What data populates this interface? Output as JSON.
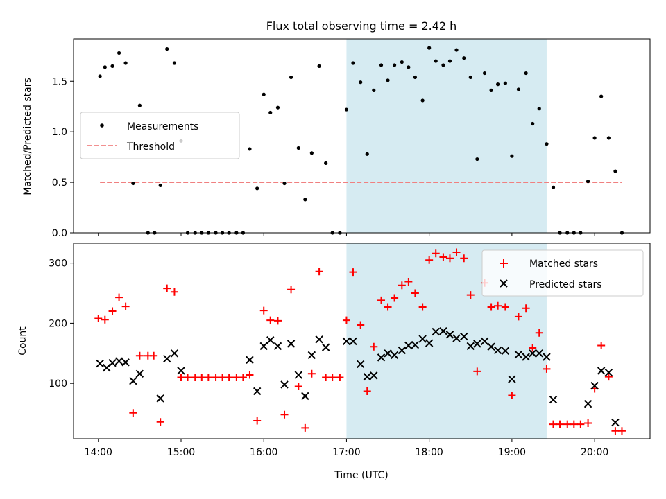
{
  "chart_data": {
    "title": "Flux total observing time = 2.42 h",
    "xlabel": "Time (UTC)",
    "x_ticks": [
      "14:00",
      "15:00",
      "16:00",
      "17:00",
      "18:00",
      "19:00",
      "20:00"
    ],
    "x_tick_hours": [
      14,
      15,
      16,
      17,
      18,
      19,
      20
    ],
    "xlim_hours": [
      13.7,
      20.67
    ],
    "shaded_interval_hours": [
      17.0,
      19.42
    ],
    "shade_color": "#add8e6",
    "panels": [
      {
        "type": "scatter",
        "ylabel": "Matched/Predicted stars",
        "ylim": [
          0,
          1.92
        ],
        "y_ticks": [
          "0.0",
          "0.5",
          "1.0",
          "1.5"
        ],
        "y_tick_values": [
          0,
          0.5,
          1.0,
          1.5
        ],
        "legend_position": "left",
        "series": [
          {
            "name": "Measurements",
            "marker": "dot",
            "color": "#000000",
            "x": [
              14.02,
              14.08,
              14.17,
              14.25,
              14.33,
              14.42,
              14.5,
              14.6,
              14.68,
              14.75,
              14.83,
              14.92,
              15.0,
              15.08,
              15.17,
              15.25,
              15.33,
              15.42,
              15.5,
              15.58,
              15.67,
              15.75,
              15.83,
              15.92,
              16.0,
              16.08,
              16.17,
              16.25,
              16.33,
              16.42,
              16.5,
              16.58,
              16.67,
              16.75,
              16.83,
              16.92,
              17.0,
              17.08,
              17.17,
              17.25,
              17.33,
              17.42,
              17.5,
              17.58,
              17.67,
              17.75,
              17.83,
              17.92,
              18.0,
              18.08,
              18.17,
              18.25,
              18.33,
              18.42,
              18.5,
              18.58,
              18.67,
              18.75,
              18.83,
              18.92,
              19.0,
              19.08,
              19.17,
              19.25,
              19.33,
              19.42,
              19.5,
              19.58,
              19.67,
              19.75,
              19.83,
              19.92,
              20.0,
              20.08,
              20.17,
              20.25,
              20.33
            ],
            "y": [
              1.55,
              1.64,
              1.65,
              1.78,
              1.68,
              0.49,
              1.26,
              0.0,
              0.0,
              0.47,
              1.82,
              1.68,
              0.91,
              0.0,
              0.0,
              0.0,
              0.0,
              0.0,
              0.0,
              0.0,
              0.0,
              0.0,
              0.83,
              0.44,
              1.37,
              1.19,
              1.24,
              0.49,
              1.54,
              0.84,
              0.33,
              0.79,
              1.65,
              0.69,
              0.0,
              0.0,
              1.22,
              1.68,
              1.49,
              0.78,
              1.41,
              1.66,
              1.51,
              1.66,
              1.69,
              1.64,
              1.54,
              1.31,
              1.83,
              1.7,
              1.66,
              1.7,
              1.81,
              1.73,
              1.54,
              0.73,
              1.58,
              1.41,
              1.47,
              1.48,
              0.76,
              1.42,
              1.58,
              1.08,
              1.23,
              0.88,
              0.45,
              0.0,
              0.0,
              0.0,
              0.0,
              0.51,
              0.94,
              1.35,
              0.94,
              0.61,
              0.0
            ]
          },
          {
            "name": "Threshold",
            "marker": "dashed-line",
            "color": "#f08080",
            "x": [
              14.02,
              20.33
            ],
            "y": [
              0.5,
              0.5
            ]
          }
        ]
      },
      {
        "type": "scatter",
        "ylabel": "Count",
        "ylim": [
          8,
          333
        ],
        "y_ticks": [
          "100",
          "200",
          "300"
        ],
        "y_tick_values": [
          100,
          200,
          300
        ],
        "legend_position": "top-right",
        "series": [
          {
            "name": "Matched stars",
            "marker": "plus",
            "color": "#ff0000",
            "x": [
              14.0,
              14.08,
              14.17,
              14.25,
              14.33,
              14.42,
              14.5,
              14.6,
              14.67,
              14.75,
              14.83,
              14.92,
              15.0,
              15.08,
              15.17,
              15.25,
              15.33,
              15.42,
              15.5,
              15.58,
              15.67,
              15.75,
              15.83,
              15.92,
              16.0,
              16.08,
              16.17,
              16.25,
              16.33,
              16.42,
              16.5,
              16.58,
              16.67,
              16.75,
              16.83,
              16.92,
              17.0,
              17.08,
              17.17,
              17.25,
              17.33,
              17.42,
              17.5,
              17.58,
              17.67,
              17.75,
              17.83,
              17.92,
              18.0,
              18.08,
              18.17,
              18.25,
              18.33,
              18.42,
              18.5,
              18.58,
              18.67,
              18.75,
              18.83,
              18.92,
              19.0,
              19.08,
              19.17,
              19.25,
              19.33,
              19.42,
              19.5,
              19.58,
              19.67,
              19.75,
              19.83,
              19.92,
              20.0,
              20.08,
              20.17,
              20.25,
              20.33
            ],
            "y": [
              208,
              206,
              220,
              243,
              228,
              51,
              146,
              146,
              146,
              36,
              258,
              252,
              110,
              110,
              110,
              110,
              110,
              110,
              110,
              110,
              110,
              110,
              114,
              38,
              221,
              205,
              204,
              48,
              256,
              95,
              26,
              116,
              286,
              110,
              110,
              110,
              205,
              285,
              197,
              87,
              161,
              238,
              227,
              242,
              263,
              269,
              250,
              227,
              305,
              316,
              310,
              308,
              318,
              308,
              247,
              120,
              267,
              227,
              229,
              227,
              80,
              211,
              225,
              159,
              184,
              124,
              32,
              32,
              32,
              32,
              32,
              34,
              91,
              163,
              111,
              21,
              21
            ]
          },
          {
            "name": "Predicted stars",
            "marker": "x",
            "color": "#000000",
            "x": [
              14.02,
              14.1,
              14.17,
              14.25,
              14.33,
              14.42,
              14.5,
              14.75,
              14.83,
              14.92,
              15.0,
              15.83,
              15.92,
              16.0,
              16.08,
              16.17,
              16.25,
              16.33,
              16.42,
              16.5,
              16.58,
              16.67,
              16.75,
              17.0,
              17.08,
              17.17,
              17.25,
              17.33,
              17.42,
              17.5,
              17.58,
              17.67,
              17.75,
              17.83,
              17.92,
              18.0,
              18.08,
              18.17,
              18.25,
              18.33,
              18.42,
              18.5,
              18.58,
              18.67,
              18.75,
              18.83,
              18.92,
              19.0,
              19.08,
              19.17,
              19.25,
              19.33,
              19.42,
              19.5,
              19.92,
              20.0,
              20.08,
              20.17,
              20.25
            ],
            "y": [
              133,
              126,
              134,
              137,
              135,
              104,
              116,
              75,
              141,
              150,
              121,
              139,
              87,
              162,
              172,
              162,
              98,
              166,
              114,
              79,
              147,
              173,
              160,
              170,
              170,
              132,
              111,
              113,
              143,
              150,
              147,
              155,
              163,
              164,
              174,
              167,
              186,
              187,
              181,
              175,
              178,
              162,
              166,
              170,
              161,
              155,
              154,
              107,
              148,
              144,
              150,
              150,
              144,
              73,
              66,
              96,
              121,
              118,
              35
            ]
          }
        ]
      }
    ]
  }
}
